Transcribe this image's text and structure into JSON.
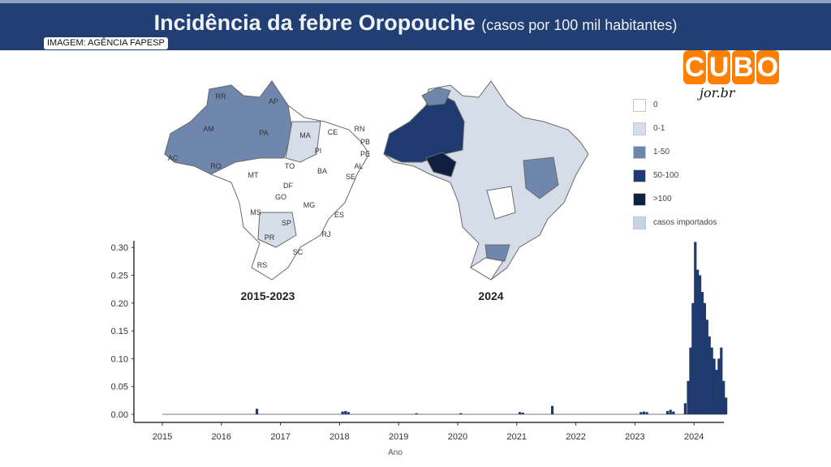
{
  "header": {
    "title": "Incidência da febre Oropouche",
    "subtitle": "(casos por 100 mil habitantes)",
    "credit": "IMAGEM: AGÊNCIA FAPESP"
  },
  "logo": {
    "letters": [
      "C",
      "U",
      "B",
      "O"
    ],
    "script": "jor.br"
  },
  "maps": {
    "left_label": "2015-2023",
    "right_label": "2024",
    "states": [
      "RR",
      "AP",
      "AM",
      "PA",
      "MA",
      "CE",
      "RN",
      "PB",
      "PE",
      "AL",
      "SE",
      "PI",
      "AC",
      "RO",
      "TO",
      "BA",
      "MT",
      "DF",
      "GO",
      "MG",
      "ES",
      "MS",
      "SP",
      "RJ",
      "PR",
      "SC",
      "RS"
    ]
  },
  "legend": [
    {
      "label": "0",
      "color": "#ffffff"
    },
    {
      "label": "0-1",
      "color": "#d5dde9"
    },
    {
      "label": "1-50",
      "color": "#6f87ad"
    },
    {
      "label": "50-100",
      "color": "#1e3a6e"
    },
    {
      "label": ">100",
      "color": "#0f1f40"
    },
    {
      "label": "casos importados",
      "color": "#c9d3e3"
    }
  ],
  "chart_data": {
    "type": "bar",
    "xlabel": "Ano",
    "ylabel": "",
    "x_ticks": [
      "2015",
      "2016",
      "2017",
      "2018",
      "2019",
      "2020",
      "2021",
      "2022",
      "2023",
      "2024"
    ],
    "y_ticks": [
      "0.00",
      "0.05",
      "0.10",
      "0.15",
      "0.20",
      "0.25",
      "0.30"
    ],
    "ylim": [
      0,
      0.31
    ],
    "color": "#1e3a6e",
    "points": [
      [
        2016.6,
        0.01
      ],
      [
        2018.05,
        0.005
      ],
      [
        2018.1,
        0.006
      ],
      [
        2018.15,
        0.004
      ],
      [
        2019.3,
        0.002
      ],
      [
        2020.05,
        0.002
      ],
      [
        2021.05,
        0.004
      ],
      [
        2021.1,
        0.003
      ],
      [
        2021.6,
        0.015
      ],
      [
        2023.1,
        0.004
      ],
      [
        2023.15,
        0.005
      ],
      [
        2023.2,
        0.004
      ],
      [
        2023.55,
        0.006
      ],
      [
        2023.6,
        0.008
      ],
      [
        2023.65,
        0.005
      ],
      [
        2023.85,
        0.02
      ],
      [
        2023.9,
        0.06
      ],
      [
        2023.94,
        0.12
      ],
      [
        2023.98,
        0.2
      ],
      [
        2024.02,
        0.31
      ],
      [
        2024.06,
        0.26
      ],
      [
        2024.1,
        0.25
      ],
      [
        2024.14,
        0.22
      ],
      [
        2024.18,
        0.2
      ],
      [
        2024.22,
        0.17
      ],
      [
        2024.26,
        0.14
      ],
      [
        2024.3,
        0.12
      ],
      [
        2024.34,
        0.1
      ],
      [
        2024.38,
        0.08
      ],
      [
        2024.42,
        0.1
      ],
      [
        2024.46,
        0.12
      ],
      [
        2024.5,
        0.06
      ],
      [
        2024.54,
        0.03
      ]
    ]
  }
}
